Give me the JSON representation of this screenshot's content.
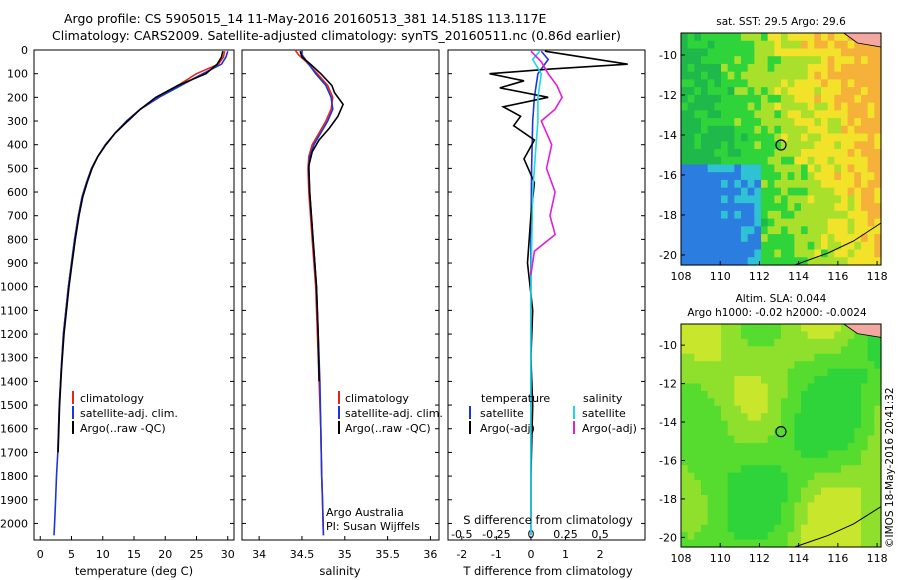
{
  "header": {
    "line1": "Argo profile: CS 5905015_14 11-May-2016 20160513_381 14.518S 113.117E",
    "line2": "Climatology: CARS2009. Satellite-adjusted climatology: synTS_20160511.nc (0.86d earlier)"
  },
  "depth_ticks": [
    "0",
    "100",
    "200",
    "300",
    "400",
    "500",
    "600",
    "700",
    "800",
    "900",
    "1000",
    "1100",
    "1200",
    "1300",
    "1400",
    "1500",
    "1600",
    "1700",
    "1800",
    "1900",
    "2000"
  ],
  "chart_data": [
    {
      "type": "line",
      "panel": "temperature",
      "xlabel": "temperature (deg C)",
      "xlim": [
        -1,
        31
      ],
      "ylim": [
        2070,
        0
      ],
      "xticks": [
        "0",
        "5",
        "10",
        "15",
        "20",
        "25",
        "30"
      ],
      "legend": [
        "climatology",
        "satellite-adj. clim.",
        "Argo(..raw -QC)"
      ],
      "series": [
        {
          "name": "climatology",
          "color": "#e8231f",
          "x": [
            29.5,
            29.3,
            28.5,
            25,
            22,
            19,
            16,
            14,
            12,
            10.5,
            9.2,
            8.2,
            7.4,
            6.7,
            6.1,
            5.5,
            5.0,
            4.5,
            4.1,
            3.7,
            3.35,
            3.05,
            2.8
          ],
          "y": [
            5,
            30,
            60,
            100,
            150,
            200,
            250,
            300,
            350,
            400,
            450,
            500,
            560,
            620,
            700,
            800,
            900,
            1000,
            1100,
            1200,
            1350,
            1500,
            1700
          ]
        },
        {
          "name": "satellite-adj. clim.",
          "color": "#1f35d6",
          "x": [
            30,
            29.7,
            29,
            26,
            22.5,
            19,
            16,
            13.8,
            12,
            10.4,
            9.2,
            8.2,
            7.4,
            6.7,
            6.1,
            5.5,
            5.0,
            4.5,
            4.1,
            3.7,
            3.35,
            3.05,
            2.8,
            2.6,
            2.45,
            2.3,
            2.2
          ],
          "y": [
            5,
            30,
            60,
            100,
            150,
            200,
            250,
            300,
            350,
            400,
            450,
            500,
            560,
            620,
            700,
            800,
            900,
            1000,
            1100,
            1200,
            1350,
            1500,
            1700,
            1800,
            1900,
            2000,
            2050
          ]
        },
        {
          "name": "Argo(..raw -QC)",
          "color": "#000000",
          "x": [
            29.2,
            29.0,
            28.3,
            26.5,
            22,
            18.5,
            16,
            14,
            12,
            10.5,
            9.2,
            8.3,
            7.5,
            6.8,
            6.2,
            5.6,
            5.1,
            4.6,
            4.2,
            3.8,
            3.4,
            3.1,
            2.85
          ],
          "y": [
            5,
            30,
            60,
            100,
            150,
            200,
            250,
            300,
            350,
            400,
            450,
            500,
            560,
            620,
            700,
            800,
            900,
            1000,
            1100,
            1200,
            1350,
            1500,
            1700
          ]
        }
      ]
    },
    {
      "type": "line",
      "panel": "salinity",
      "xlabel": "salinity",
      "xlim": [
        33.8,
        36.1
      ],
      "ylim": [
        2070,
        0
      ],
      "xticks": [
        "34",
        "34.5",
        "35",
        "35.5",
        "36"
      ],
      "legend": [
        "climatology",
        "satellite-adj. clim.",
        "Argo(..raw -QC)"
      ],
      "annotation": [
        "Argo Australia",
        "PI: Susan Wijffels"
      ],
      "series": [
        {
          "name": "climatology",
          "color": "#e8231f",
          "x": [
            34.42,
            34.46,
            34.55,
            34.68,
            34.8,
            34.86,
            34.84,
            34.78,
            34.7,
            34.62,
            34.58,
            34.57,
            34.58,
            34.6,
            34.62,
            34.64,
            34.66,
            34.68,
            34.7,
            34.72,
            34.73,
            34.74,
            34.75
          ],
          "y": [
            0,
            20,
            50,
            100,
            150,
            200,
            250,
            300,
            350,
            400,
            450,
            500,
            600,
            700,
            800,
            900,
            1000,
            1200,
            1400,
            1600,
            1800,
            1900,
            2050
          ]
        },
        {
          "name": "satellite-adj. clim.",
          "color": "#1f35d6",
          "x": [
            34.5,
            34.5,
            34.56,
            34.66,
            34.78,
            34.84,
            34.86,
            34.8,
            34.72,
            34.64,
            34.59,
            34.58,
            34.59,
            34.61,
            34.63,
            34.65,
            34.67,
            34.69,
            34.71,
            34.72,
            34.73,
            34.74,
            34.75
          ],
          "y": [
            0,
            20,
            50,
            100,
            150,
            200,
            250,
            300,
            350,
            400,
            450,
            500,
            600,
            700,
            800,
            900,
            1000,
            1200,
            1400,
            1600,
            1800,
            1900,
            2050
          ]
        },
        {
          "name": "Argo(..raw -QC)",
          "color": "#000000",
          "x": [
            34.48,
            34.5,
            34.6,
            34.72,
            34.85,
            34.88,
            34.98,
            34.92,
            34.82,
            34.7,
            34.62,
            34.58,
            34.59,
            34.61,
            34.63,
            34.65,
            34.67,
            34.69,
            34.7
          ],
          "y": [
            5,
            30,
            60,
            100,
            150,
            180,
            230,
            280,
            330,
            380,
            430,
            490,
            600,
            700,
            800,
            900,
            1000,
            1200,
            1400
          ]
        }
      ]
    },
    {
      "type": "line",
      "panel": "difference",
      "xlabel": "T difference from climatology",
      "xlabel_top": "S difference from climatology",
      "xlim": [
        -2.4,
        3.3
      ],
      "ylim": [
        2070,
        0
      ],
      "xticks": [
        "-2",
        "-1",
        "0",
        "1",
        "2"
      ],
      "xticks_top": [
        "-0.5",
        "-0.25",
        "0",
        "0.25",
        "0.5"
      ],
      "legend_temperature": {
        "heading": "temperature",
        "items": [
          "satellite",
          "Argo(-adj)"
        ]
      },
      "legend_salinity": {
        "heading": "salinity",
        "items": [
          "satellite",
          "Argo(-adj)"
        ]
      },
      "series": [
        {
          "name": "temperature satellite",
          "color": "#1f35d6",
          "x": [
            0.3,
            0.5,
            0.2,
            0.1,
            0.05,
            0.02,
            0.0,
            0.0,
            0.0,
            0.0
          ],
          "y": [
            5,
            40,
            100,
            200,
            300,
            500,
            800,
            1200,
            1600,
            2050
          ]
        },
        {
          "name": "temperature Argo(-adj)",
          "color": "#000000",
          "x": [
            0.4,
            2.8,
            0.6,
            -1.2,
            -0.2,
            -0.9,
            0.5,
            -0.8,
            -0.3,
            -0.5,
            0.1,
            -0.2,
            0.1,
            0.0,
            -0.1,
            0.05,
            0.0,
            0.05,
            0.0,
            0.0
          ],
          "y": [
            5,
            60,
            80,
            100,
            130,
            160,
            200,
            240,
            280,
            320,
            380,
            460,
            560,
            700,
            900,
            1100,
            1300,
            1500,
            1800,
            2000
          ]
        },
        {
          "name": "salinity satellite",
          "color": "#1ad8e6",
          "x": [
            0.25,
            0.05,
            0.3,
            0.2,
            0.2,
            0.15,
            0.05,
            0.0,
            0.0,
            0.0
          ],
          "y": [
            5,
            40,
            100,
            200,
            300,
            400,
            600,
            1000,
            1500,
            2050
          ]
        },
        {
          "name": "salinity Argo(-adj)",
          "color": "#e01fd6",
          "x": [
            0.0,
            0.3,
            0.5,
            0.75,
            0.9,
            0.7,
            0.3,
            0.6,
            0.45,
            0.7,
            0.55,
            0.7,
            0.1,
            0.0
          ],
          "y": [
            5,
            50,
            100,
            150,
            200,
            250,
            300,
            400,
            500,
            600,
            700,
            780,
            850,
            950
          ]
        }
      ]
    },
    {
      "type": "heatmap",
      "panel": "sst-map",
      "title": "sat. SST: 29.5  Argo: 29.6",
      "xlim": [
        108,
        118.2
      ],
      "ylim": [
        -20.5,
        -8.9
      ],
      "xticks": [
        "108",
        "110",
        "112",
        "114",
        "116",
        "118"
      ],
      "yticks": [
        "-10",
        "-12",
        "-14",
        "-16",
        "-18",
        "-20"
      ],
      "marker": {
        "lon": 113.1,
        "lat": -14.5
      }
    },
    {
      "type": "heatmap",
      "panel": "sla-map",
      "title_line1": "Altim. SLA: 0.044",
      "title_line2": "Argo h1000: -0.02  h2000: -0.0024",
      "xlim": [
        108,
        118.2
      ],
      "ylim": [
        -20.5,
        -8.9
      ],
      "xticks": [
        "108",
        "110",
        "112",
        "114",
        "116",
        "118"
      ],
      "yticks": [
        "-10",
        "-12",
        "-14",
        "-16",
        "-18",
        "-20"
      ],
      "marker": {
        "lon": 113.1,
        "lat": -14.5
      }
    }
  ],
  "credit": "©IMOS 18-May-2016 20:41:32"
}
